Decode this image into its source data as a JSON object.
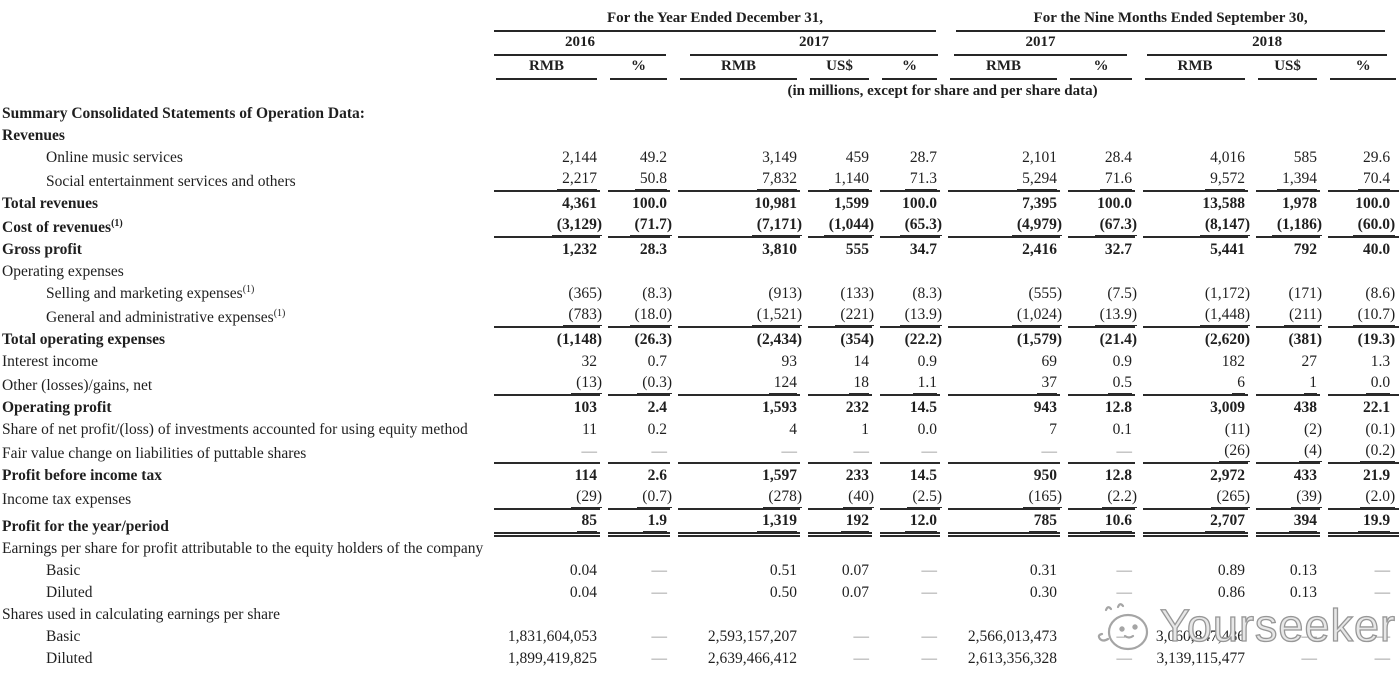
{
  "header": {
    "group1_title": "For the Year Ended December 31,",
    "group2_title": "For the Nine Months Ended September 30,",
    "years": [
      "2016",
      "2017",
      "2017",
      "2018"
    ],
    "currency_cols": [
      "RMB",
      "%",
      "RMB",
      "US$",
      "%",
      "RMB",
      "%",
      "RMB",
      "US$",
      "%"
    ],
    "units_note": "(in millions, except for share and per share data)"
  },
  "rows": [
    {
      "label": "Summary Consolidated Statements of Operation Data:",
      "bold": true
    },
    {
      "label": "Revenues",
      "bold": true
    },
    {
      "label": "Online music services",
      "indent": 1,
      "values": [
        "2,144",
        "49.2",
        "3,149",
        "459",
        "28.7",
        "2,101",
        "28.4",
        "4,016",
        "585",
        "29.6"
      ]
    },
    {
      "label": "Social entertainment services and others",
      "indent": 1,
      "rule": "single",
      "values": [
        "2,217",
        "50.8",
        "7,832",
        "1,140",
        "71.3",
        "5,294",
        "71.6",
        "9,572",
        "1,394",
        "70.4"
      ]
    },
    {
      "label": "Total revenues",
      "bold": true,
      "boldValues": true,
      "values": [
        "4,361",
        "100.0",
        "10,981",
        "1,599",
        "100.0",
        "7,395",
        "100.0",
        "13,588",
        "1,978",
        "100.0"
      ]
    },
    {
      "label": "Cost of revenues",
      "sup": "(1)",
      "bold": true,
      "boldValues": true,
      "rule": "single",
      "values": [
        "(3,129)",
        "(71.7)",
        "(7,171)",
        "(1,044)",
        "(65.3)",
        "(4,979)",
        "(67.3)",
        "(8,147)",
        "(1,186)",
        "(60.0)"
      ]
    },
    {
      "label": "Gross profit",
      "bold": true,
      "boldValues": true,
      "values": [
        "1,232",
        "28.3",
        "3,810",
        "555",
        "34.7",
        "2,416",
        "32.7",
        "5,441",
        "792",
        "40.0"
      ]
    },
    {
      "label": "Operating expenses"
    },
    {
      "label": "Selling and marketing expenses",
      "sup": "(1)",
      "indent": 1,
      "values": [
        "(365)",
        "(8.3)",
        "(913)",
        "(133)",
        "(8.3)",
        "(555)",
        "(7.5)",
        "(1,172)",
        "(171)",
        "(8.6)"
      ]
    },
    {
      "label": "General and administrative expenses",
      "sup": "(1)",
      "indent": 1,
      "rule": "single",
      "values": [
        "(783)",
        "(18.0)",
        "(1,521)",
        "(221)",
        "(13.9)",
        "(1,024)",
        "(13.9)",
        "(1,448)",
        "(211)",
        "(10.7)"
      ]
    },
    {
      "label": "Total operating expenses",
      "bold": true,
      "boldValues": true,
      "values": [
        "(1,148)",
        "(26.3)",
        "(2,434)",
        "(354)",
        "(22.2)",
        "(1,579)",
        "(21.4)",
        "(2,620)",
        "(381)",
        "(19.3)"
      ]
    },
    {
      "label": "Interest income",
      "values": [
        "32",
        "0.7",
        "93",
        "14",
        "0.9",
        "69",
        "0.9",
        "182",
        "27",
        "1.3"
      ]
    },
    {
      "label": "Other (losses)/gains, net",
      "rule": "single",
      "values": [
        "(13)",
        "(0.3)",
        "124",
        "18",
        "1.1",
        "37",
        "0.5",
        "6",
        "1",
        "0.0"
      ]
    },
    {
      "label": "Operating profit",
      "bold": true,
      "boldValues": true,
      "values": [
        "103",
        "2.4",
        "1,593",
        "232",
        "14.5",
        "943",
        "12.8",
        "3,009",
        "438",
        "22.1"
      ]
    },
    {
      "label": "Share of net profit/(loss) of investments accounted for using equity method",
      "wrap": true,
      "values": [
        "11",
        "0.2",
        "4",
        "1",
        "0.0",
        "7",
        "0.1",
        "(11)",
        "(2)",
        "(0.1)"
      ]
    },
    {
      "label": "Fair value change on liabilities of puttable shares",
      "rule": "single",
      "values": [
        "—",
        "—",
        "—",
        "—",
        "—",
        "—",
        "—",
        "(26)",
        "(4)",
        "(0.2)"
      ]
    },
    {
      "label": "Profit before income tax",
      "bold": true,
      "boldValues": true,
      "values": [
        "114",
        "2.6",
        "1,597",
        "233",
        "14.5",
        "950",
        "12.8",
        "2,972",
        "433",
        "21.9"
      ]
    },
    {
      "label": "Income tax expenses",
      "rule": "single",
      "values": [
        "(29)",
        "(0.7)",
        "(278)",
        "(40)",
        "(2.5)",
        "(165)",
        "(2.2)",
        "(265)",
        "(39)",
        "(2.0)"
      ]
    },
    {
      "label": "Profit for the year/period",
      "bold": true,
      "boldValues": true,
      "rule": "double",
      "values": [
        "85",
        "1.9",
        "1,319",
        "192",
        "12.0",
        "785",
        "10.6",
        "2,707",
        "394",
        "19.9"
      ]
    },
    {
      "label": "Earnings per share for profit attributable to the equity holders of the company",
      "wrap": true
    },
    {
      "label": "Basic",
      "indent": 1,
      "values": [
        "0.04",
        "—",
        "0.51",
        "0.07",
        "—",
        "0.31",
        "—",
        "0.89",
        "0.13",
        "—"
      ]
    },
    {
      "label": "Diluted",
      "indent": 1,
      "values": [
        "0.04",
        "—",
        "0.50",
        "0.07",
        "—",
        "0.30",
        "—",
        "0.86",
        "0.13",
        "—"
      ]
    },
    {
      "label": "Shares used in calculating earnings per share"
    },
    {
      "label": "Basic",
      "indent": 1,
      "values": [
        "1,831,604,053",
        "—",
        "2,593,157,207",
        "—",
        "—",
        "2,566,013,473",
        "—",
        "3,060,847,486",
        "—",
        "—"
      ]
    },
    {
      "label": "Diluted",
      "indent": 1,
      "values": [
        "1,899,419,825",
        "—",
        "2,639,466,412",
        "—",
        "—",
        "2,613,356,328",
        "—",
        "3,139,115,477",
        "—",
        "—"
      ]
    }
  ],
  "watermark": {
    "text": "Yourseeker"
  }
}
